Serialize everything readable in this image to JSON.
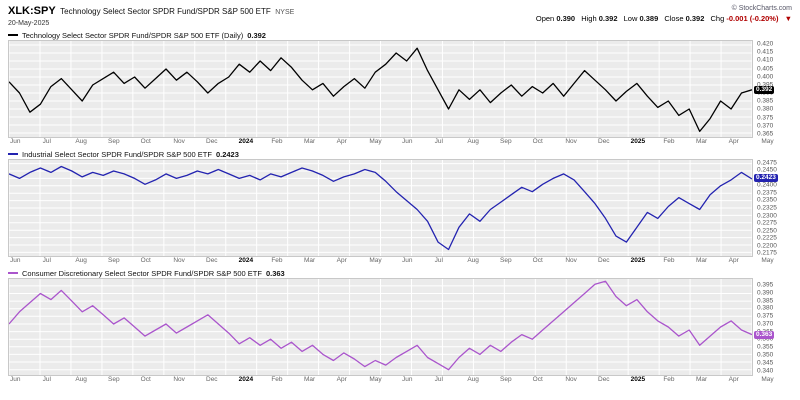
{
  "header": {
    "symbol": "XLK:SPY",
    "description": "Technology Select Sector SPDR Fund/SPDR S&P 500 ETF",
    "exchange": "NYSE",
    "date": "20-May-2025",
    "copyright": "© StockCharts.com",
    "quote": {
      "open_label": "Open",
      "open": "0.390",
      "high_label": "High",
      "high": "0.392",
      "low_label": "Low",
      "low": "0.389",
      "close_label": "Close",
      "close": "0.392",
      "chg_label": "Chg",
      "chg": "-0.001 (-0.20%)",
      "chg_arrow": "▼"
    }
  },
  "chart_data": [
    {
      "type": "line",
      "name": "Technology Select Sector SPDR Fund/SPDR S&P 500 ETF (Daily)",
      "last_label": "0.392",
      "color": "#000000",
      "ylim": [
        0.3625,
        0.4225
      ],
      "ticks": [
        "0.420",
        "0.415",
        "0.410",
        "0.405",
        "0.400",
        "0.395",
        "0.390",
        "0.385",
        "0.380",
        "0.375",
        "0.370",
        "0.365"
      ],
      "categories": [
        "Jun",
        "Jul",
        "Aug",
        "Sep",
        "Oct",
        "Nov",
        "Dec",
        "2024",
        "Feb",
        "Mar",
        "Apr",
        "May",
        "Jun",
        "Jul",
        "Aug",
        "Sep",
        "Oct",
        "Nov",
        "Dec",
        "2025",
        "Feb",
        "Mar",
        "Apr",
        "May"
      ],
      "values": [
        0.397,
        0.39,
        0.378,
        0.383,
        0.394,
        0.399,
        0.392,
        0.385,
        0.395,
        0.399,
        0.403,
        0.396,
        0.4,
        0.393,
        0.399,
        0.405,
        0.398,
        0.403,
        0.397,
        0.39,
        0.396,
        0.4,
        0.408,
        0.403,
        0.41,
        0.404,
        0.412,
        0.406,
        0.398,
        0.392,
        0.396,
        0.388,
        0.394,
        0.399,
        0.393,
        0.403,
        0.408,
        0.415,
        0.41,
        0.418,
        0.404,
        0.392,
        0.38,
        0.392,
        0.386,
        0.392,
        0.384,
        0.39,
        0.395,
        0.388,
        0.394,
        0.39,
        0.396,
        0.388,
        0.396,
        0.404,
        0.398,
        0.392,
        0.385,
        0.391,
        0.396,
        0.388,
        0.381,
        0.385,
        0.376,
        0.38,
        0.366,
        0.374,
        0.385,
        0.38,
        0.39,
        0.392
      ]
    },
    {
      "type": "line",
      "name": "Industrial Select Sector SPDR Fund/SPDR S&P 500 ETF",
      "last_label": "0.2423",
      "color": "#2323b0",
      "ylim": [
        0.2163,
        0.2487
      ],
      "ticks": [
        "0.2475",
        "0.2450",
        "0.2425",
        "0.2400",
        "0.2375",
        "0.2350",
        "0.2325",
        "0.2300",
        "0.2275",
        "0.2250",
        "0.2225",
        "0.2200",
        "0.2175"
      ],
      "categories": [
        "Jun",
        "Jul",
        "Aug",
        "Sep",
        "Oct",
        "Nov",
        "Dec",
        "2024",
        "Feb",
        "Mar",
        "Apr",
        "May",
        "Jun",
        "Jul",
        "Aug",
        "Sep",
        "Oct",
        "Nov",
        "Dec",
        "2025",
        "Feb",
        "Mar",
        "Apr",
        "May"
      ],
      "values": [
        0.244,
        0.2425,
        0.2445,
        0.246,
        0.2445,
        0.2465,
        0.245,
        0.243,
        0.2445,
        0.2435,
        0.245,
        0.244,
        0.2425,
        0.2405,
        0.242,
        0.244,
        0.2425,
        0.2435,
        0.245,
        0.244,
        0.2455,
        0.244,
        0.2425,
        0.2435,
        0.242,
        0.244,
        0.243,
        0.2445,
        0.246,
        0.245,
        0.2435,
        0.2415,
        0.243,
        0.244,
        0.2455,
        0.2445,
        0.2415,
        0.238,
        0.235,
        0.232,
        0.228,
        0.221,
        0.2185,
        0.226,
        0.2305,
        0.228,
        0.232,
        0.2345,
        0.237,
        0.2395,
        0.238,
        0.2405,
        0.2425,
        0.244,
        0.242,
        0.238,
        0.234,
        0.229,
        0.223,
        0.221,
        0.226,
        0.231,
        0.229,
        0.233,
        0.236,
        0.234,
        0.232,
        0.237,
        0.24,
        0.242,
        0.2445,
        0.2423
      ]
    },
    {
      "type": "line",
      "name": "Consumer Discretionary Select Sector SPDR Fund/SPDR S&P 500 ETF",
      "last_label": "0.363",
      "color": "#aa55cc",
      "ylim": [
        0.3365,
        0.3995
      ],
      "ticks": [
        "0.395",
        "0.390",
        "0.385",
        "0.380",
        "0.375",
        "0.370",
        "0.365",
        "0.360",
        "0.355",
        "0.350",
        "0.345",
        "0.340"
      ],
      "categories": [
        "Jun",
        "Jul",
        "Aug",
        "Sep",
        "Oct",
        "Nov",
        "Dec",
        "2024",
        "Feb",
        "Mar",
        "Apr",
        "May",
        "Jun",
        "Jul",
        "Aug",
        "Sep",
        "Oct",
        "Nov",
        "Dec",
        "2025",
        "Feb",
        "Mar",
        "Apr",
        "May"
      ],
      "values": [
        0.37,
        0.378,
        0.384,
        0.39,
        0.386,
        0.392,
        0.385,
        0.378,
        0.382,
        0.376,
        0.37,
        0.374,
        0.368,
        0.362,
        0.366,
        0.37,
        0.364,
        0.368,
        0.372,
        0.376,
        0.37,
        0.364,
        0.357,
        0.361,
        0.356,
        0.36,
        0.354,
        0.358,
        0.352,
        0.356,
        0.35,
        0.346,
        0.351,
        0.347,
        0.342,
        0.346,
        0.343,
        0.348,
        0.352,
        0.356,
        0.348,
        0.344,
        0.34,
        0.348,
        0.354,
        0.35,
        0.356,
        0.352,
        0.358,
        0.363,
        0.36,
        0.366,
        0.372,
        0.378,
        0.384,
        0.39,
        0.396,
        0.398,
        0.388,
        0.382,
        0.386,
        0.378,
        0.372,
        0.368,
        0.362,
        0.366,
        0.356,
        0.362,
        0.368,
        0.372,
        0.366,
        0.363
      ]
    }
  ]
}
